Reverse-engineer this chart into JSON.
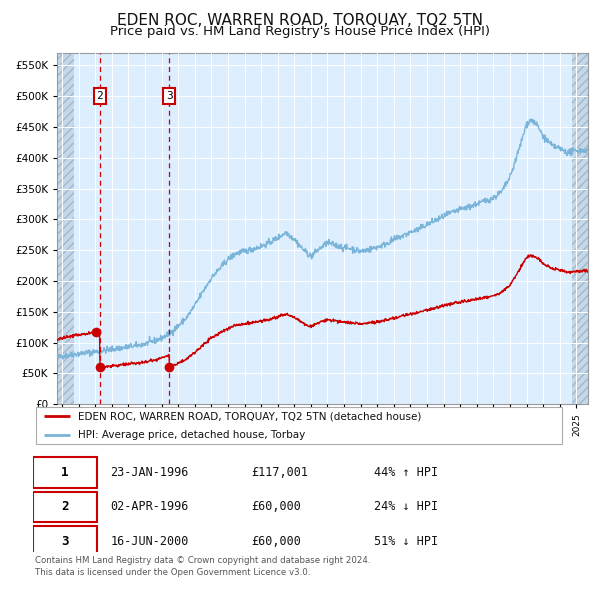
{
  "title": "EDEN ROC, WARREN ROAD, TORQUAY, TQ2 5TN",
  "subtitle": "Price paid vs. HM Land Registry's House Price Index (HPI)",
  "ylim": [
    0,
    570000
  ],
  "yticks": [
    0,
    50000,
    100000,
    150000,
    200000,
    250000,
    300000,
    350000,
    400000,
    450000,
    500000,
    550000
  ],
  "ytick_labels": [
    "£0",
    "£50K",
    "£100K",
    "£150K",
    "£200K",
    "£250K",
    "£300K",
    "£350K",
    "£400K",
    "£450K",
    "£500K",
    "£550K"
  ],
  "xlim_start": 1993.7,
  "xlim_end": 2025.7,
  "plot_bg_color": "#ddeeff",
  "hatch_color": "#b8cfe0",
  "grid_color": "#ffffff",
  "hpi_color": "#7ab4d8",
  "price_color": "#cc0000",
  "sale1_date": 1996.06,
  "sale1_price": 117001,
  "sale2_date": 1996.28,
  "sale2_price": 60000,
  "sale3_date": 2000.46,
  "sale3_price": 60000,
  "legend_entries": [
    "EDEN ROC, WARREN ROAD, TORQUAY, TQ2 5TN (detached house)",
    "HPI: Average price, detached house, Torbay"
  ],
  "table_rows": [
    {
      "num": "1",
      "date": "23-JAN-1996",
      "price": "£117,001",
      "hpi": "44% ↑ HPI"
    },
    {
      "num": "2",
      "date": "02-APR-1996",
      "price": "£60,000",
      "hpi": "24% ↓ HPI"
    },
    {
      "num": "3",
      "date": "16-JUN-2000",
      "price": "£60,000",
      "hpi": "51% ↓ HPI"
    }
  ],
  "footer": "Contains HM Land Registry data © Crown copyright and database right 2024.\nThis data is licensed under the Open Government Licence v3.0.",
  "title_fontsize": 11,
  "subtitle_fontsize": 9.5,
  "hatch_left_end": 1994.75,
  "hatch_right_start": 2024.75
}
